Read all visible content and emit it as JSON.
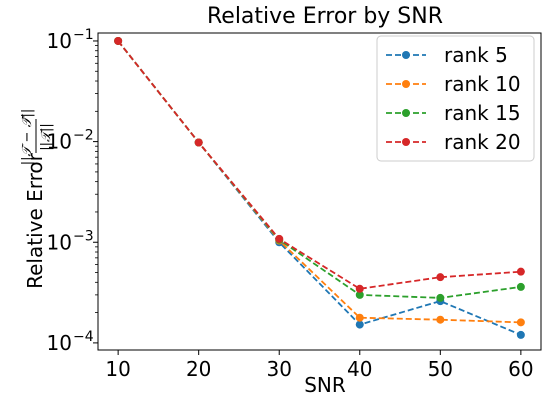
{
  "chart_data": {
    "type": "line",
    "title": "Relative Error by SNR",
    "xlabel": "SNR",
    "ylabel": "Relative Error ",
    "ylabel_math": {
      "numerator": "||𝒯 − 𝒯̂||",
      "denominator": "||𝒯||"
    },
    "yscale": "log",
    "x": [
      10,
      20,
      30,
      40,
      50,
      60
    ],
    "xlim": [
      7.5,
      62.5
    ],
    "ylim": [
      8.5e-05,
      0.12
    ],
    "xticks": [
      10,
      20,
      30,
      40,
      50,
      60
    ],
    "xtick_labels": [
      "10",
      "20",
      "30",
      "40",
      "50",
      "60"
    ],
    "yticks": [
      {
        "value": 0.1,
        "base": "10",
        "exp": "−1"
      },
      {
        "value": 0.01,
        "base": "10",
        "exp": "−2"
      },
      {
        "value": 0.001,
        "base": "10",
        "exp": "−3"
      },
      {
        "value": 0.0001,
        "base": "10",
        "exp": "−4"
      }
    ],
    "grid": false,
    "legend_position": "top-right",
    "line_style": "dashed",
    "marker": "circle",
    "series": [
      {
        "name": "rank 5",
        "color": "#1f77b4",
        "values": [
          0.1,
          0.0098,
          0.001,
          0.000152,
          0.00026,
          0.00012
        ]
      },
      {
        "name": "rank 10",
        "color": "#ff7f0e",
        "values": [
          0.1,
          0.0098,
          0.00104,
          0.000178,
          0.00017,
          0.00016
        ]
      },
      {
        "name": "rank 15",
        "color": "#2ca02c",
        "values": [
          0.1,
          0.0098,
          0.00106,
          0.0003,
          0.00028,
          0.00036
        ]
      },
      {
        "name": "rank 20",
        "color": "#d62728",
        "values": [
          0.1,
          0.0098,
          0.00108,
          0.000345,
          0.00045,
          0.00051
        ]
      }
    ]
  }
}
